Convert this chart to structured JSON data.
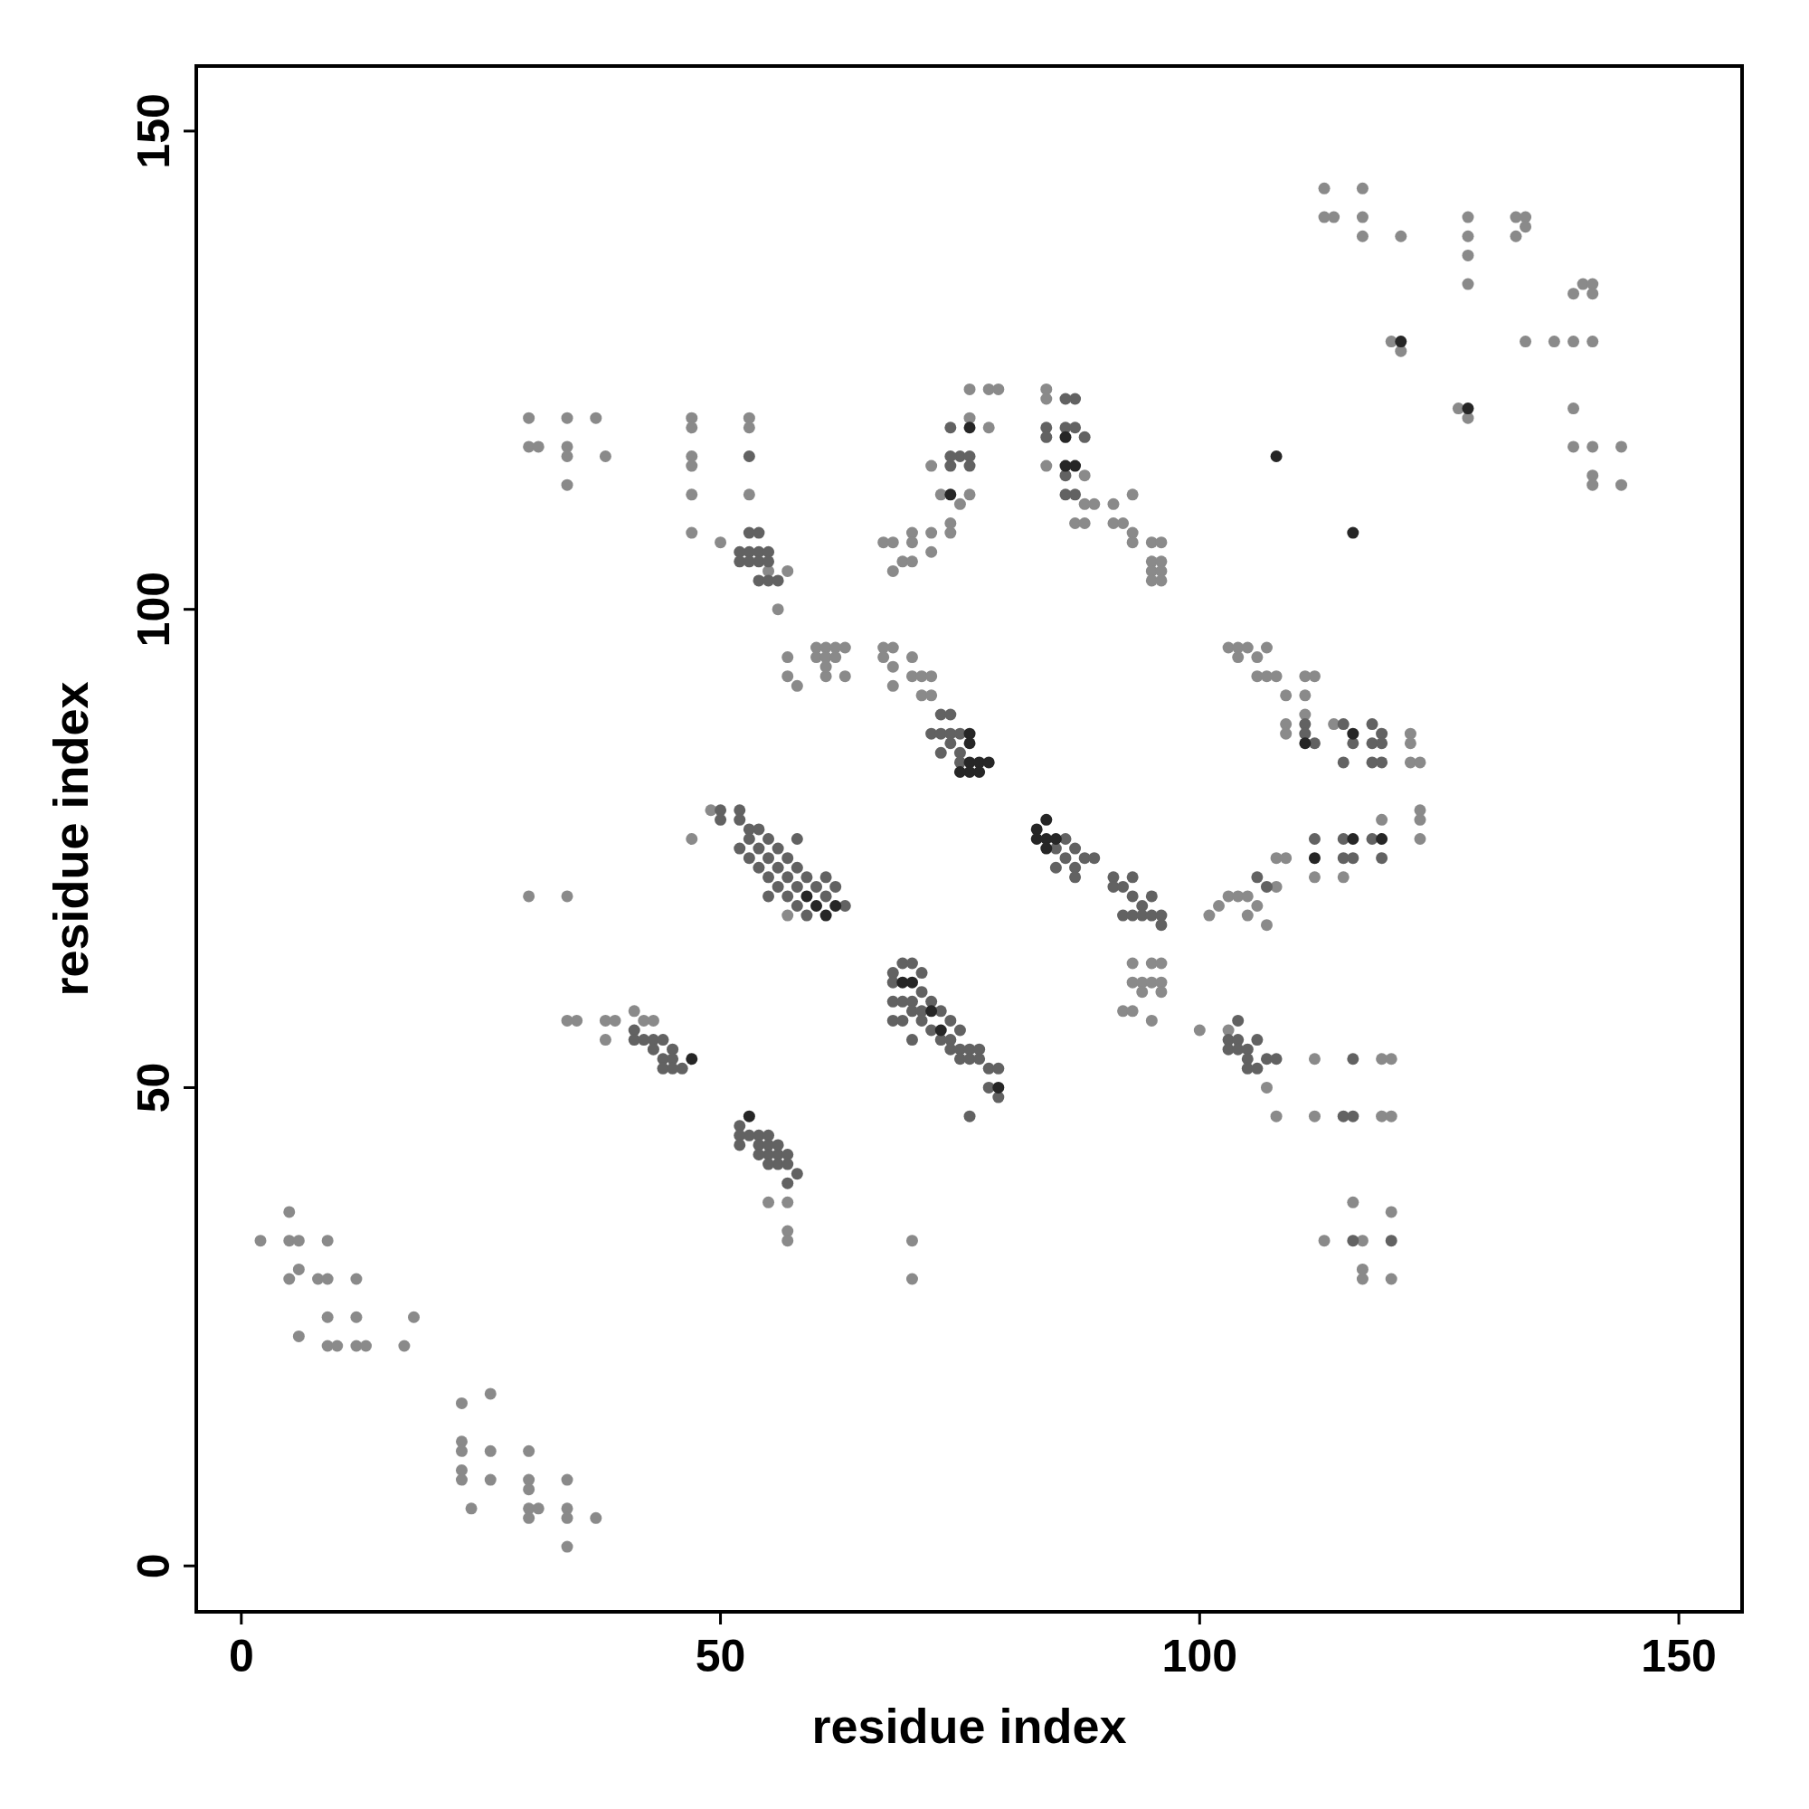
{
  "chart_data": {
    "type": "scatter",
    "xlabel": "residue index",
    "ylabel": "residue index",
    "xlim": [
      -4.7,
      156.6
    ],
    "ylim": [
      -4.8,
      156.8
    ],
    "xticks": [
      0,
      50,
      100,
      150
    ],
    "yticks": [
      0,
      50,
      100,
      150
    ],
    "marker": "circle",
    "series": [
      {
        "color": "#8a8a8a",
        "x": [
          2,
          5,
          5,
          6,
          9,
          5,
          6,
          8,
          9,
          12,
          9,
          12,
          18,
          6,
          9,
          10,
          12,
          13,
          17,
          23,
          26,
          23,
          23,
          26,
          30,
          23,
          23,
          26,
          30,
          34,
          30,
          24,
          30,
          31,
          34,
          30,
          34,
          37,
          34,
          113,
          117,
          120,
          116,
          120,
          117,
          117,
          70,
          70,
          57,
          57,
          55,
          57,
          100,
          103,
          108,
          112,
          119,
          120,
          112,
          119,
          120,
          107,
          34,
          35,
          38,
          39,
          41,
          42,
          43,
          38,
          92,
          93,
          95,
          93,
          95,
          96,
          93,
          94,
          95,
          96,
          94,
          96,
          30,
          34,
          47,
          49,
          57,
          101,
          102,
          103,
          104,
          105,
          107,
          105,
          106,
          108,
          109,
          108,
          123,
          123,
          123,
          119,
          115,
          112,
          67,
          68,
          67,
          68,
          70,
          68,
          70,
          71,
          72,
          71,
          72,
          57,
          60,
          61,
          62,
          63,
          60,
          61,
          62,
          57,
          58,
          61,
          63,
          61,
          103,
          104,
          105,
          107,
          104,
          106,
          106,
          107,
          108,
          111,
          112,
          109,
          111,
          109,
          111,
          109,
          114,
          122,
          122,
          122,
          123,
          30,
          34,
          37,
          30,
          31,
          34,
          38,
          34,
          34,
          47,
          47,
          53,
          53,
          47,
          47,
          47,
          53,
          47,
          50,
          57,
          56,
          55,
          67,
          68,
          70,
          68,
          69,
          70,
          72,
          72,
          70,
          73,
          72,
          74,
          74,
          78,
          76,
          78,
          79,
          76,
          76,
          75,
          84,
          84,
          84,
          88,
          88,
          89,
          87,
          88,
          91,
          93,
          91,
          92,
          93,
          93,
          95,
          96,
          95,
          96,
          95,
          96,
          95,
          96,
          113,
          114,
          113,
          117,
          117,
          117,
          121,
          120,
          121,
          128,
          128,
          128,
          128,
          127,
          128,
          133,
          134,
          133,
          134,
          134,
          137,
          139,
          141,
          139,
          140,
          141,
          141,
          139,
          139,
          141,
          141,
          141,
          144,
          144
        ],
        "values": [
          34,
          37,
          34,
          34,
          34,
          30,
          31,
          30,
          30,
          30,
          26,
          26,
          26,
          24,
          23,
          23,
          23,
          23,
          23,
          17,
          18,
          13,
          12,
          12,
          12,
          10,
          9,
          9,
          9,
          9,
          8,
          6,
          6,
          6,
          6,
          5,
          5,
          5,
          2,
          34,
          34,
          30,
          38,
          37,
          31,
          30,
          34,
          30,
          35,
          34,
          38,
          38,
          56,
          56,
          47,
          53,
          53,
          53,
          47,
          47,
          47,
          50,
          57,
          57,
          57,
          57,
          58,
          57,
          57,
          55,
          58,
          58,
          57,
          63,
          63,
          63,
          61,
          61,
          61,
          61,
          60,
          60,
          70,
          70,
          76,
          79,
          68,
          68,
          69,
          70,
          70,
          70,
          67,
          68,
          69,
          74,
          74,
          71,
          79,
          78,
          76,
          78,
          72,
          72,
          96,
          96,
          95,
          94,
          95,
          92,
          93,
          93,
          93,
          91,
          91,
          95,
          96,
          96,
          96,
          96,
          95,
          95,
          95,
          93,
          92,
          93,
          93,
          94,
          96,
          96,
          96,
          96,
          95,
          95,
          93,
          93,
          93,
          93,
          93,
          91,
          91,
          88,
          89,
          87,
          88,
          87,
          86,
          84,
          84,
          120,
          120,
          120,
          117,
          117,
          117,
          116,
          116,
          113,
          120,
          119,
          120,
          119,
          116,
          115,
          112,
          112,
          108,
          107,
          104,
          100,
          104,
          107,
          107,
          108,
          104,
          105,
          105,
          108,
          106,
          107,
          112,
          115,
          108,
          109,
          119,
          123,
          123,
          123,
          120,
          112,
          111,
          123,
          122,
          115,
          114,
          111,
          111,
          109,
          109,
          111,
          112,
          109,
          109,
          108,
          107,
          107,
          107,
          105,
          105,
          104,
          104,
          103,
          103,
          144,
          141,
          141,
          144,
          141,
          139,
          139,
          128,
          127,
          141,
          139,
          137,
          134,
          121,
          120,
          141,
          141,
          139,
          140,
          128,
          128,
          128,
          128,
          133,
          134,
          134,
          133,
          121,
          117,
          117,
          114,
          113,
          117,
          113
        ]
      },
      {
        "color": "#626262",
        "x": [
          116,
          120,
          104,
          103,
          104,
          106,
          103,
          104,
          105,
          105,
          107,
          108,
          105,
          106,
          115,
          116,
          116,
          52,
          52,
          52,
          53,
          54,
          54,
          55,
          55,
          55,
          56,
          56,
          56,
          57,
          57,
          57,
          58,
          54,
          55,
          41,
          41,
          42,
          43,
          43,
          44,
          45,
          44,
          45,
          46,
          44,
          45,
          68,
          69,
          70,
          71,
          68,
          69,
          70,
          71,
          72,
          68,
          69,
          70,
          71,
          73,
          72,
          74,
          70,
          73,
          74,
          75,
          74,
          75,
          76,
          77,
          75,
          76,
          77,
          78,
          79,
          78,
          79,
          76,
          71,
          68,
          50,
          52,
          50,
          52,
          53,
          53,
          54,
          54,
          55,
          55,
          56,
          56,
          57,
          57,
          58,
          58,
          59,
          60,
          61,
          63,
          62,
          55,
          52,
          53,
          54,
          55,
          56,
          57,
          58,
          59,
          61,
          58,
          86,
          85,
          86,
          87,
          87,
          88,
          89,
          87,
          85,
          91,
          91,
          92,
          93,
          93,
          94,
          95,
          92,
          93,
          94,
          95,
          96,
          96,
          106,
          107,
          112,
          115,
          115,
          116,
          119,
          118,
          73,
          74,
          72,
          73,
          74,
          75,
          73,
          74,
          75,
          75,
          111,
          111,
          112,
          115,
          116,
          115,
          118,
          119,
          118,
          119,
          118,
          119,
          53,
          54,
          52,
          53,
          54,
          55,
          52,
          53,
          54,
          54,
          55,
          56,
          55,
          53,
          74,
          75,
          76,
          76,
          74,
          74,
          87,
          86,
          86,
          87,
          84,
          84,
          88,
          86,
          86,
          87
        ],
        "values": [
          34,
          34,
          57,
          55,
          55,
          55,
          54,
          54,
          54,
          53,
          53,
          53,
          52,
          52,
          47,
          47,
          53,
          46,
          45,
          44,
          45,
          45,
          44,
          45,
          44,
          43,
          44,
          43,
          42,
          43,
          42,
          40,
          41,
          43,
          42,
          56,
          55,
          55,
          55,
          54,
          55,
          54,
          53,
          53,
          52,
          52,
          52,
          62,
          63,
          63,
          62,
          59,
          59,
          59,
          60,
          59,
          57,
          57,
          58,
          58,
          58,
          56,
          57,
          55,
          55,
          55,
          56,
          54,
          54,
          54,
          54,
          53,
          53,
          53,
          52,
          52,
          50,
          49,
          47,
          57,
          61,
          79,
          79,
          78,
          78,
          77,
          76,
          77,
          75,
          76,
          74,
          75,
          73,
          74,
          72,
          73,
          71,
          72,
          71,
          70,
          69,
          71,
          70,
          75,
          74,
          73,
          72,
          71,
          70,
          69,
          68,
          72,
          76,
          76,
          75,
          74,
          75,
          73,
          74,
          74,
          72,
          73,
          72,
          71,
          71,
          72,
          70,
          69,
          70,
          68,
          68,
          68,
          68,
          68,
          67,
          72,
          71,
          76,
          76,
          74,
          74,
          74,
          76,
          89,
          89,
          87,
          87,
          87,
          87,
          85,
          86,
          85,
          84,
          88,
          87,
          86,
          88,
          86,
          84,
          88,
          87,
          86,
          86,
          84,
          84,
          108,
          108,
          106,
          106,
          106,
          106,
          105,
          105,
          105,
          103,
          103,
          103,
          105,
          116,
          115,
          116,
          116,
          115,
          119,
          116,
          122,
          122,
          119,
          119,
          119,
          118,
          118,
          114,
          112,
          112
        ]
      },
      {
        "color": "#262626",
        "x": [
          47,
          53,
          108,
          116,
          121,
          128,
          76,
          77,
          78,
          76,
          77,
          75,
          84,
          83,
          83,
          84,
          85,
          84,
          76,
          76,
          62,
          61,
          59,
          60,
          74,
          76,
          86,
          86,
          87,
          111,
          116,
          116,
          119,
          112,
          72,
          73,
          69,
          70,
          79
        ],
        "values": [
          53,
          47,
          116,
          108,
          128,
          121,
          84,
          84,
          84,
          83,
          83,
          83,
          78,
          77,
          76,
          76,
          76,
          75,
          87,
          86,
          69,
          68,
          70,
          69,
          112,
          119,
          118,
          115,
          115,
          86,
          87,
          76,
          76,
          74,
          58,
          56,
          61,
          61,
          50
        ]
      }
    ]
  }
}
